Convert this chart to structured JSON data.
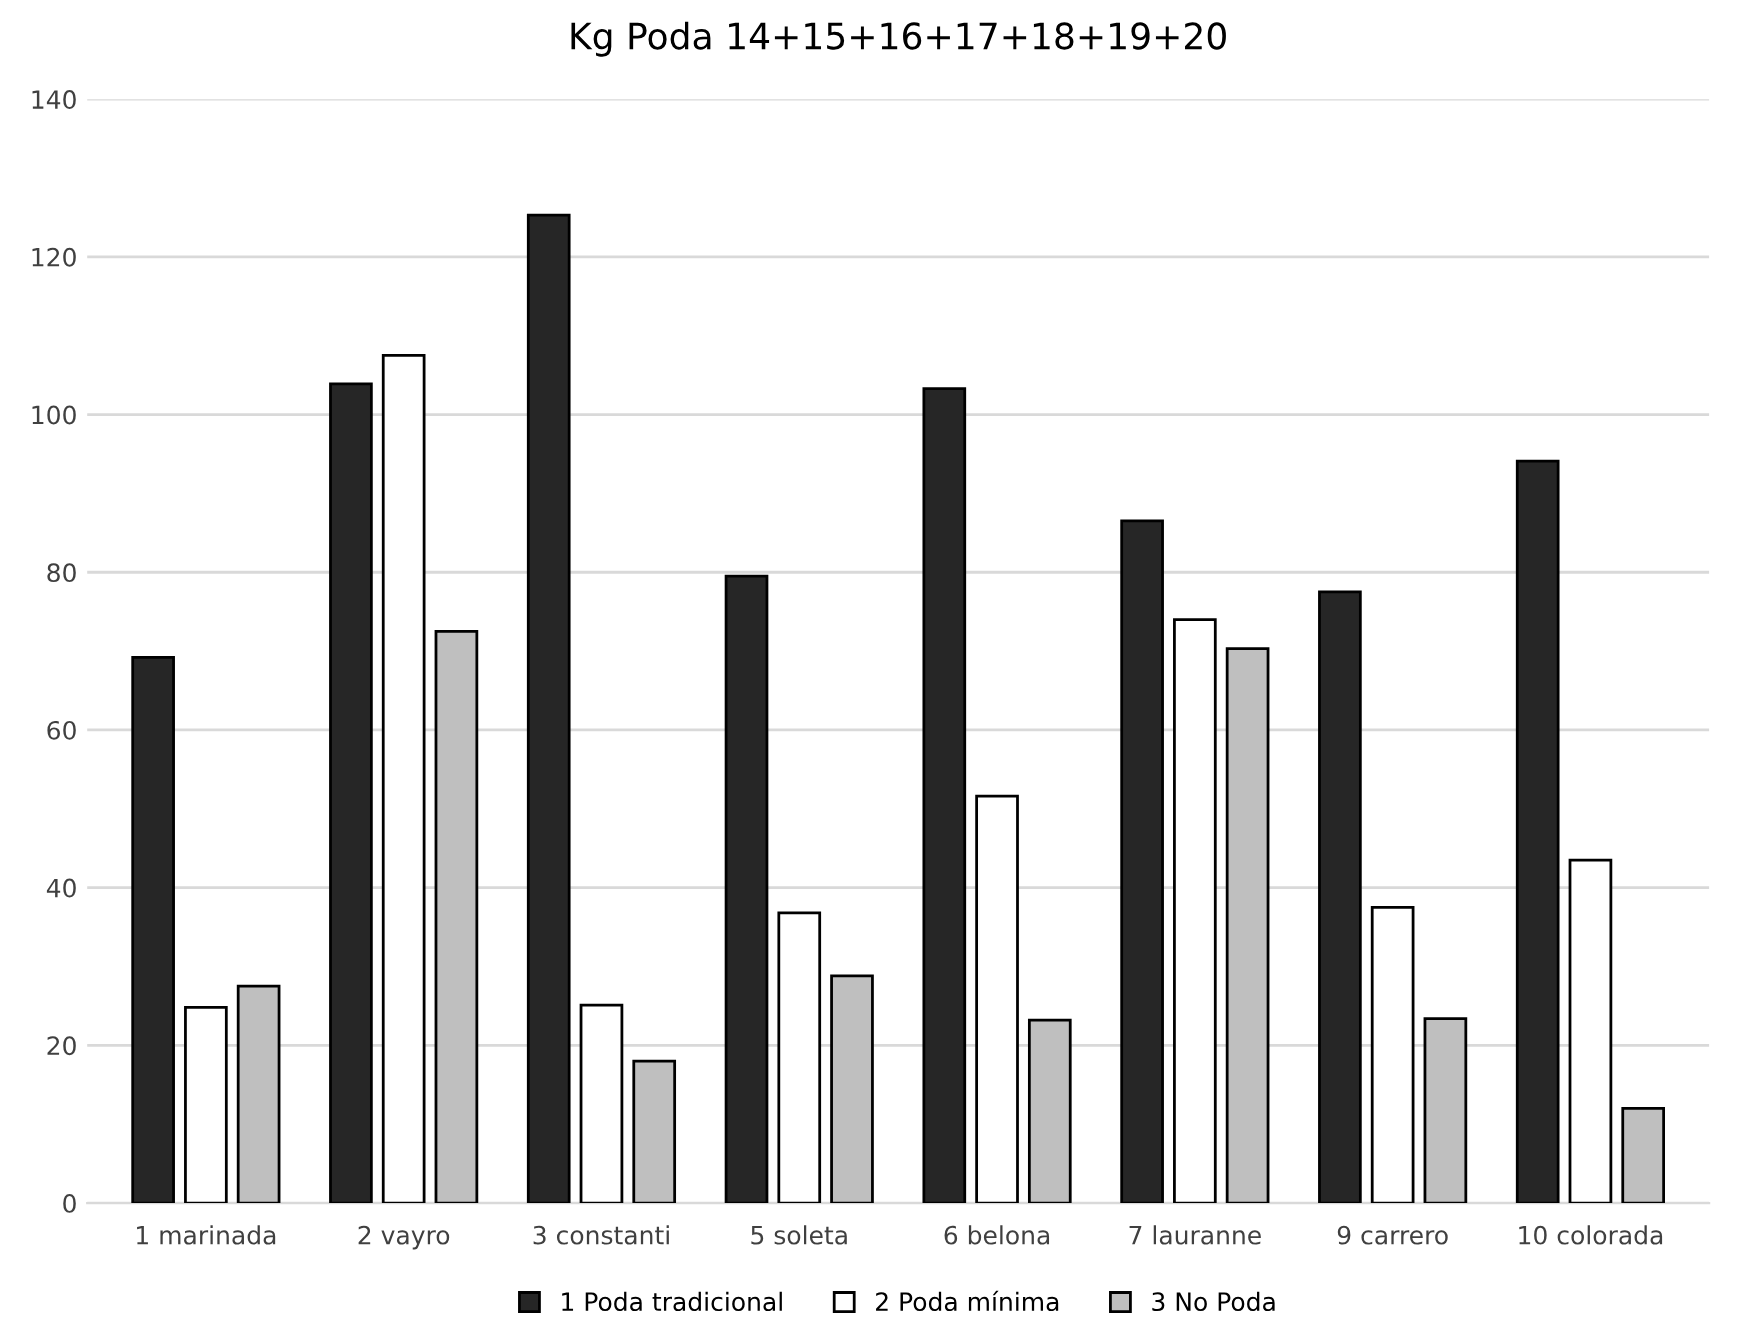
{
  "chart_data": {
    "type": "bar",
    "title": "Kg Poda 14+15+16+17+18+19+20",
    "categories": [
      "1 marinada",
      "2 vayro",
      "3 constanti",
      "5 soleta",
      "6 belona",
      "7 lauranne",
      "9 carrero",
      "10 colorada"
    ],
    "series": [
      {
        "name": "1 Poda tradicional",
        "color": "#262626",
        "values": [
          69.2,
          103.9,
          125.3,
          79.5,
          103.3,
          86.5,
          77.5,
          94.1
        ]
      },
      {
        "name": "2 Poda mínima",
        "color": "#ffffff",
        "values": [
          24.8,
          107.5,
          25.1,
          36.8,
          51.6,
          74.0,
          37.5,
          43.5
        ]
      },
      {
        "name": "3 No Poda",
        "color": "#bfbfbf",
        "values": [
          27.5,
          72.5,
          18.0,
          28.8,
          23.2,
          70.3,
          23.4,
          12.0
        ]
      }
    ],
    "ylim": [
      0,
      140
    ],
    "yticks": [
      0,
      20,
      40,
      60,
      80,
      100,
      120,
      140
    ],
    "grid": "y",
    "legend": "bottom"
  }
}
